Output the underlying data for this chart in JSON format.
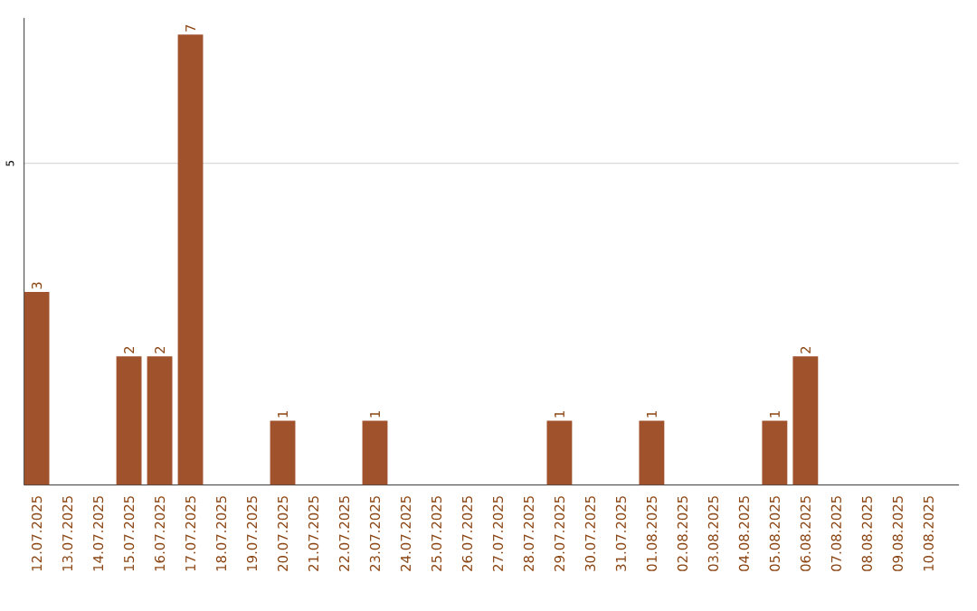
{
  "chart_data": {
    "type": "bar",
    "categories": [
      "12.07.2025",
      "13.07.2025",
      "14.07.2025",
      "15.07.2025",
      "16.07.2025",
      "17.07.2025",
      "18.07.2025",
      "19.07.2025",
      "20.07.2025",
      "21.07.2025",
      "22.07.2025",
      "23.07.2025",
      "24.07.2025",
      "25.07.2025",
      "26.07.2025",
      "27.07.2025",
      "28.07.2025",
      "29.07.2025",
      "30.07.2025",
      "31.07.2025",
      "01.08.2025",
      "02.08.2025",
      "03.08.2025",
      "04.08.2025",
      "05.08.2025",
      "06.08.2025",
      "07.08.2025",
      "08.08.2025",
      "09.08.2025",
      "10.08.2025"
    ],
    "values": [
      3,
      0,
      0,
      2,
      2,
      7,
      0,
      0,
      1,
      0,
      0,
      1,
      0,
      0,
      0,
      0,
      0,
      1,
      0,
      0,
      1,
      0,
      0,
      0,
      1,
      2,
      0,
      0,
      0,
      0
    ],
    "value_labels": [
      "3",
      null,
      null,
      "2",
      "2",
      "7",
      null,
      null,
      "1",
      null,
      null,
      "1",
      null,
      null,
      null,
      null,
      null,
      "1",
      null,
      null,
      "1",
      null,
      null,
      null,
      "1",
      "2",
      null,
      null,
      null,
      null
    ],
    "color": "#a0522d",
    "ylim": [
      0,
      7.26
    ],
    "yticks": [
      5
    ],
    "grid": "y"
  }
}
